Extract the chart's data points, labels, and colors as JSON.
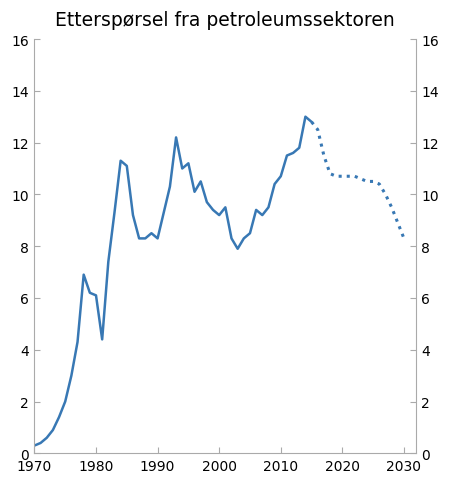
{
  "title": "Etterspørsel fra petroleumssektoren",
  "solid_years": [
    1970,
    1971,
    1972,
    1973,
    1974,
    1975,
    1976,
    1977,
    1978,
    1979,
    1980,
    1981,
    1982,
    1983,
    1984,
    1985,
    1986,
    1987,
    1988,
    1989,
    1990,
    1991,
    1992,
    1993,
    1994,
    1995,
    1996,
    1997,
    1998,
    1999,
    2000,
    2001,
    2002,
    2003,
    2004,
    2005,
    2006,
    2007,
    2008,
    2009,
    2010,
    2011,
    2012,
    2013,
    2014,
    2015
  ],
  "solid_values": [
    0.3,
    0.4,
    0.6,
    0.9,
    1.4,
    2.0,
    3.0,
    4.3,
    6.9,
    6.2,
    6.1,
    4.4,
    7.4,
    9.3,
    11.3,
    11.1,
    9.2,
    8.3,
    8.3,
    8.5,
    8.3,
    9.3,
    10.3,
    12.2,
    11.0,
    11.2,
    10.1,
    10.5,
    9.7,
    9.4,
    9.2,
    9.5,
    8.3,
    7.9,
    8.3,
    8.5,
    9.4,
    9.2,
    9.5,
    10.4,
    10.7,
    11.5,
    11.6,
    11.8,
    13.0,
    12.8
  ],
  "dotted_years": [
    2015,
    2016,
    2017,
    2018,
    2019,
    2020,
    2021,
    2022,
    2023,
    2024,
    2025,
    2026,
    2027,
    2028,
    2029,
    2030
  ],
  "dotted_values": [
    12.8,
    12.5,
    11.5,
    10.8,
    10.7,
    10.7,
    10.7,
    10.7,
    10.6,
    10.5,
    10.5,
    10.4,
    10.0,
    9.5,
    8.9,
    8.3
  ],
  "line_color": "#3878b4",
  "xlim": [
    1970,
    2032
  ],
  "ylim": [
    0,
    16
  ],
  "xticks": [
    1970,
    1980,
    1990,
    2000,
    2010,
    2020,
    2030
  ],
  "yticks": [
    0,
    2,
    4,
    6,
    8,
    10,
    12,
    14,
    16
  ],
  "title_fontsize": 13.5,
  "spine_color": "#aaaaaa",
  "tick_color": "#aaaaaa",
  "background_color": "#ffffff"
}
